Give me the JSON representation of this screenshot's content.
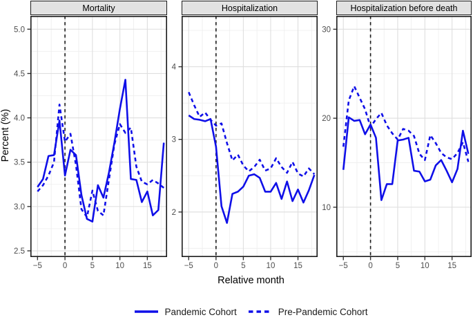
{
  "figure": {
    "y_axis_title": "Percent (%)",
    "x_axis_title": "Relative month",
    "colors": {
      "line_blue": "#0F0FE8",
      "strip_bg": "#E2E2E2",
      "panel_border": "#1A1A1A",
      "grid_major": "#DEDEDE",
      "grid_minor": "#EFEFEF",
      "tick_label": "#4D4D4D",
      "tick_mark": "#333333",
      "vline": "#1A1A1A"
    },
    "legend": [
      {
        "label": "Pandemic Cohort",
        "style": "solid"
      },
      {
        "label": "Pre-Pandemic Cohort",
        "style": "dashed"
      }
    ]
  },
  "chart_data": [
    {
      "type": "line",
      "title": "Mortality",
      "xlabel": "Relative month",
      "ylabel": "Percent (%)",
      "x": [
        -5,
        -4,
        -3,
        -2,
        -1,
        0,
        1,
        2,
        3,
        4,
        5,
        6,
        7,
        8,
        9,
        10,
        11,
        12,
        13,
        14,
        15,
        16,
        17,
        18
      ],
      "series": [
        {
          "name": "Pandemic Cohort",
          "style": "solid",
          "values": [
            3.22,
            3.31,
            3.57,
            3.58,
            3.97,
            3.35,
            3.64,
            3.58,
            3.13,
            2.86,
            2.83,
            3.24,
            3.1,
            3.38,
            3.72,
            4.1,
            4.43,
            3.31,
            3.3,
            3.05,
            3.17,
            2.9,
            2.96,
            3.72
          ]
        },
        {
          "name": "Pre-Pandemic Cohort",
          "style": "dashed",
          "values": [
            3.17,
            3.24,
            3.35,
            3.5,
            4.15,
            3.73,
            3.82,
            3.47,
            2.97,
            2.88,
            3.18,
            2.95,
            2.9,
            3.3,
            3.7,
            3.93,
            3.83,
            3.89,
            3.45,
            3.28,
            3.25,
            3.3,
            3.26,
            3.21
          ]
        }
      ],
      "ylim": [
        2.43,
        5.15
      ],
      "yticks": [
        2.5,
        3.0,
        3.5,
        4.0,
        4.5,
        5.0
      ],
      "ytick_labels": [
        "2.5",
        "3.0",
        "3.5",
        "4.0",
        "4.5",
        "5.0"
      ],
      "xlim": [
        -6.3,
        18.6
      ],
      "xticks": [
        -5,
        0,
        5,
        10,
        15
      ],
      "xtick_labels": [
        "−5",
        "0",
        "5",
        "10",
        "15"
      ],
      "vline_x": 0,
      "grid": true
    },
    {
      "type": "line",
      "title": "Hospitalization",
      "xlabel": "Relative month",
      "ylabel": "Percent (%)",
      "x": [
        -5,
        -4,
        -3,
        -2,
        -1,
        0,
        1,
        2,
        3,
        4,
        5,
        6,
        7,
        8,
        9,
        10,
        11,
        12,
        13,
        14,
        15,
        16,
        17,
        18
      ],
      "series": [
        {
          "name": "Pandemic Cohort",
          "style": "solid",
          "values": [
            3.33,
            3.28,
            3.27,
            3.25,
            3.28,
            2.9,
            2.08,
            1.85,
            2.25,
            2.28,
            2.35,
            2.5,
            2.52,
            2.47,
            2.28,
            2.28,
            2.4,
            2.18,
            2.42,
            2.15,
            2.31,
            2.13,
            2.3,
            2.51
          ]
        },
        {
          "name": "Pre-Pandemic Cohort",
          "style": "dashed",
          "values": [
            3.65,
            3.47,
            3.31,
            3.37,
            3.27,
            3.19,
            3.22,
            2.95,
            2.71,
            2.79,
            2.64,
            2.56,
            2.62,
            2.72,
            2.57,
            2.6,
            2.74,
            2.62,
            2.54,
            2.69,
            2.53,
            2.49,
            2.6,
            2.52
          ]
        }
      ],
      "ylim": [
        1.38,
        4.7
      ],
      "yticks": [
        2,
        3,
        4
      ],
      "ytick_labels": [
        "2",
        "3",
        "4"
      ],
      "xlim": [
        -6.3,
        18.6
      ],
      "xticks": [
        -5,
        0,
        5,
        10,
        15
      ],
      "xtick_labels": [
        "−5",
        "0",
        "5",
        "10",
        "15"
      ],
      "vline_x": 0,
      "grid": true
    },
    {
      "type": "line",
      "title": "Hospitalization before death",
      "xlabel": "Relative month",
      "ylabel": "Percent (%)",
      "x": [
        -5,
        -4,
        -3,
        -2,
        -1,
        0,
        1,
        2,
        3,
        4,
        5,
        6,
        7,
        8,
        9,
        10,
        11,
        12,
        13,
        14,
        15,
        16,
        17,
        18
      ],
      "series": [
        {
          "name": "Pandemic Cohort",
          "style": "solid",
          "values": [
            14.2,
            20.1,
            19.7,
            19.8,
            18.2,
            19.3,
            17.8,
            10.8,
            12.6,
            12.6,
            17.5,
            17.6,
            17.8,
            14.1,
            14.0,
            12.9,
            13.1,
            14.7,
            15.3,
            14.1,
            12.8,
            14.3,
            18.6,
            16.0
          ]
        },
        {
          "name": "Pre-Pandemic Cohort",
          "style": "dashed",
          "values": [
            16.8,
            22.0,
            23.6,
            22.3,
            21.0,
            19.0,
            19.9,
            20.6,
            19.2,
            18.3,
            17.6,
            18.8,
            18.6,
            18.0,
            16.0,
            15.3,
            18.1,
            17.2,
            16.1,
            15.6,
            15.4,
            16.1,
            17.3,
            15.1
          ]
        }
      ],
      "ylim": [
        4.4,
        31.5
      ],
      "yticks": [
        10,
        20,
        30
      ],
      "ytick_labels": [
        "10",
        "20",
        "30"
      ],
      "xlim": [
        -6.3,
        18.6
      ],
      "xticks": [
        -5,
        0,
        5,
        10,
        15
      ],
      "xtick_labels": [
        "−5",
        "0",
        "5",
        "10",
        "15"
      ],
      "vline_x": 0,
      "grid": true
    }
  ]
}
